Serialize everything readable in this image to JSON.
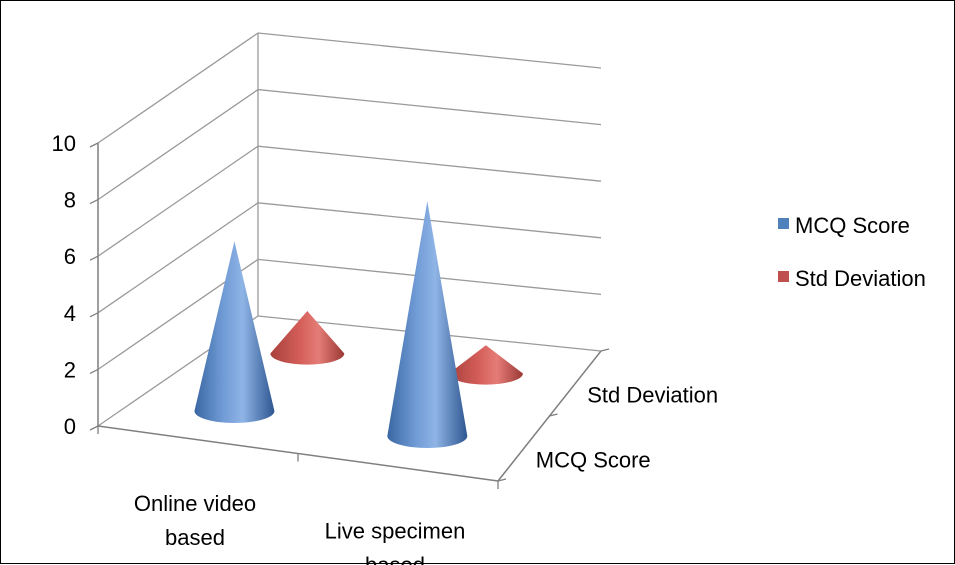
{
  "chart_data": {
    "type": "bar",
    "subtype": "3d-cone",
    "categories": [
      "Online video based",
      "Live specimen based"
    ],
    "category_lines": [
      [
        "Online video",
        "based"
      ],
      [
        "Live specimen",
        "based"
      ]
    ],
    "series": [
      {
        "name": "MCQ Score",
        "values": [
          6,
          8.3
        ],
        "color": "#4F81BD"
      },
      {
        "name": "Std Deviation",
        "values": [
          1.5,
          1.0
        ],
        "color": "#C0504D"
      }
    ],
    "depth_labels": [
      "MCQ Score",
      "Std Deviation"
    ],
    "yticks": [
      0,
      2,
      4,
      6,
      8,
      10
    ],
    "ylim": [
      0,
      10
    ],
    "legend_position": "right",
    "grid": true
  }
}
